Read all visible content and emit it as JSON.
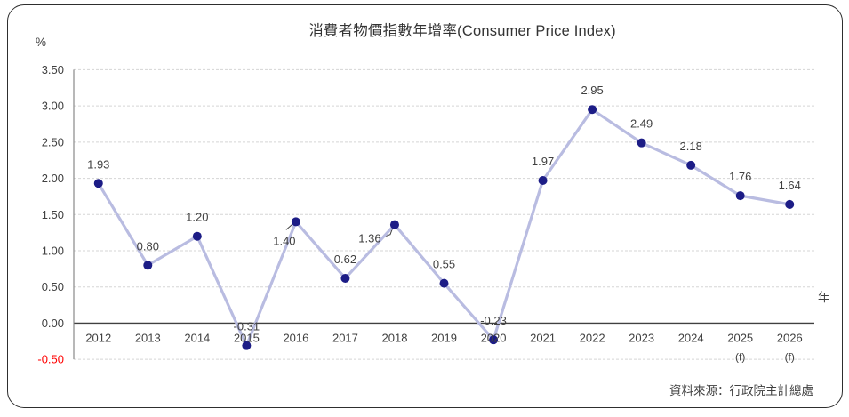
{
  "title": "消費者物價指數年增率(Consumer Price Index)",
  "y_axis_unit": "%",
  "x_axis_unit": "年",
  "source": "資料來源：行政院主計總處",
  "chart_data": {
    "type": "line",
    "title": "消費者物價指數年增率(Consumer Price Index)",
    "categories": [
      "2012",
      "2013",
      "2014",
      "2015",
      "2016",
      "2017",
      "2018",
      "2019",
      "2020",
      "2021",
      "2022",
      "2023",
      "2024",
      "2025",
      "2026"
    ],
    "category_sublabels": [
      "",
      "",
      "",
      "",
      "",
      "",
      "",
      "",
      "",
      "",
      "",
      "",
      "",
      "(f)",
      "(f)"
    ],
    "values": [
      1.93,
      0.8,
      1.2,
      -0.31,
      1.4,
      0.62,
      1.36,
      0.55,
      -0.23,
      1.97,
      2.95,
      2.49,
      2.18,
      1.76,
      1.64
    ],
    "point_labels": [
      "1.93",
      "0.80",
      "1.20",
      "-0.31",
      "1.40",
      "0.62",
      "1.36",
      "0.55",
      "-0.23",
      "1.97",
      "2.95",
      "2.49",
      "2.18",
      "1.76",
      "1.64"
    ],
    "xlabel": "年",
    "ylabel": "%",
    "ylim": [
      -0.5,
      3.5
    ],
    "ytick_step": 0.5,
    "yticks": [
      "3.50",
      "3.00",
      "2.50",
      "2.00",
      "1.50",
      "1.00",
      "0.50",
      "0.00",
      "-0.50"
    ],
    "grid": true,
    "legend": "none",
    "colors": {
      "line": "#b9bce1",
      "marker": "#1c1c86",
      "grid": "#d5d5d5",
      "zero_line": "#404040",
      "axis": "#7f7f7f",
      "text": "#404040",
      "negative_tick": "#ff0000",
      "callout": "#404040"
    }
  }
}
